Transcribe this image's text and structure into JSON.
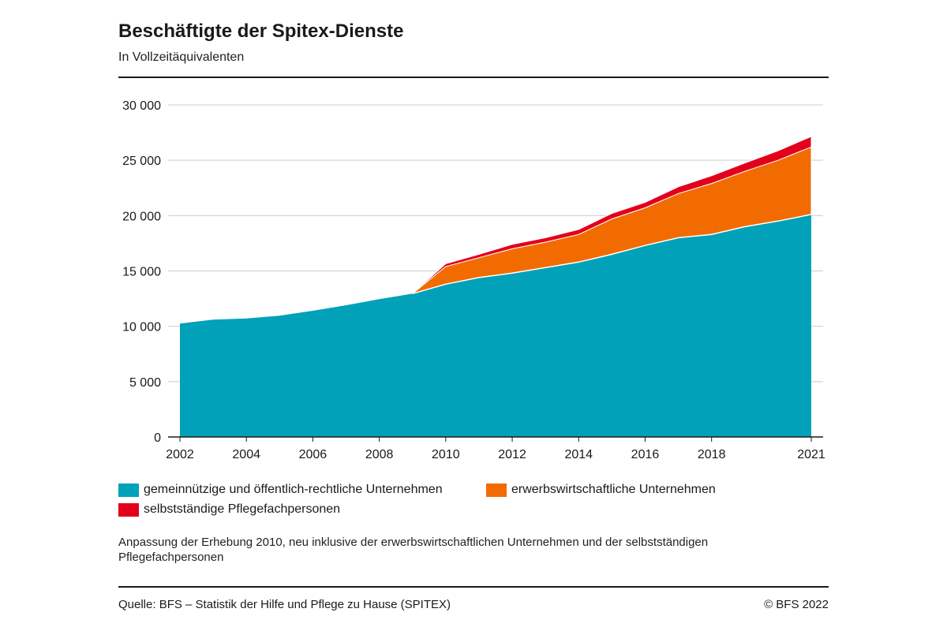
{
  "title": "Beschäftigte der Spitex-Dienste",
  "subtitle": "In Vollzeitäquivalenten",
  "note": "Anpassung der Erhebung 2010, neu inklusive der erwerbswirtschaftlichen Unternehmen und der selbstständigen Pflegefachpersonen",
  "source": "Quelle: BFS – Statistik der Hilfe und Pflege zu Hause (SPITEX)",
  "copyright": "© BFS 2022",
  "colors": {
    "gemeinnuetzig": "#00a1b9",
    "erwerbswirtschaftlich": "#f26b00",
    "selbststaendig": "#e3001b",
    "grid": "#cccccc",
    "axis": "#1a1a1a"
  },
  "chart_data": {
    "type": "area",
    "stacked": true,
    "x": [
      2002,
      2003,
      2004,
      2005,
      2006,
      2007,
      2008,
      2009,
      2010,
      2011,
      2012,
      2013,
      2014,
      2015,
      2016,
      2017,
      2018,
      2019,
      2020,
      2021
    ],
    "series": [
      {
        "name": "gemeinnützige und öffentlich-rechtliche Unternehmen",
        "color_key": "gemeinnuetzig",
        "values": [
          10250,
          10600,
          10700,
          10950,
          11400,
          11900,
          12450,
          12950,
          13800,
          14400,
          14800,
          15300,
          15800,
          16500,
          17300,
          18000,
          18300,
          19000,
          19500,
          20100
        ]
      },
      {
        "name": "erwerbswirtschaftliche Unternehmen",
        "color_key": "erwerbswirtschaftlich",
        "values": [
          0,
          0,
          0,
          0,
          0,
          0,
          0,
          0,
          1600,
          1800,
          2200,
          2300,
          2500,
          3200,
          3400,
          4000,
          4600,
          5000,
          5500,
          6100
        ]
      },
      {
        "name": "selbstständige Pflegefachpersonen",
        "color_key": "selbststaendig",
        "values": [
          0,
          0,
          0,
          0,
          0,
          0,
          0,
          0,
          250,
          300,
          400,
          400,
          450,
          500,
          500,
          600,
          700,
          750,
          850,
          950
        ]
      }
    ],
    "x_ticks": [
      2002,
      2004,
      2006,
      2008,
      2010,
      2012,
      2014,
      2016,
      2018,
      2021
    ],
    "x_tick_labels": [
      "2002",
      "2004",
      "2006",
      "2008",
      "2010",
      "2012",
      "2014",
      "2016",
      "2018",
      "2021"
    ],
    "y_ticks": [
      0,
      5000,
      10000,
      15000,
      20000,
      25000,
      30000
    ],
    "y_tick_labels": [
      "0",
      "5 000",
      "10 000",
      "15 000",
      "20 000",
      "25 000",
      "30 000"
    ],
    "xlim": [
      2002,
      2021
    ],
    "ylim": [
      0,
      30000
    ],
    "grid": true,
    "legend_position": "bottom"
  }
}
